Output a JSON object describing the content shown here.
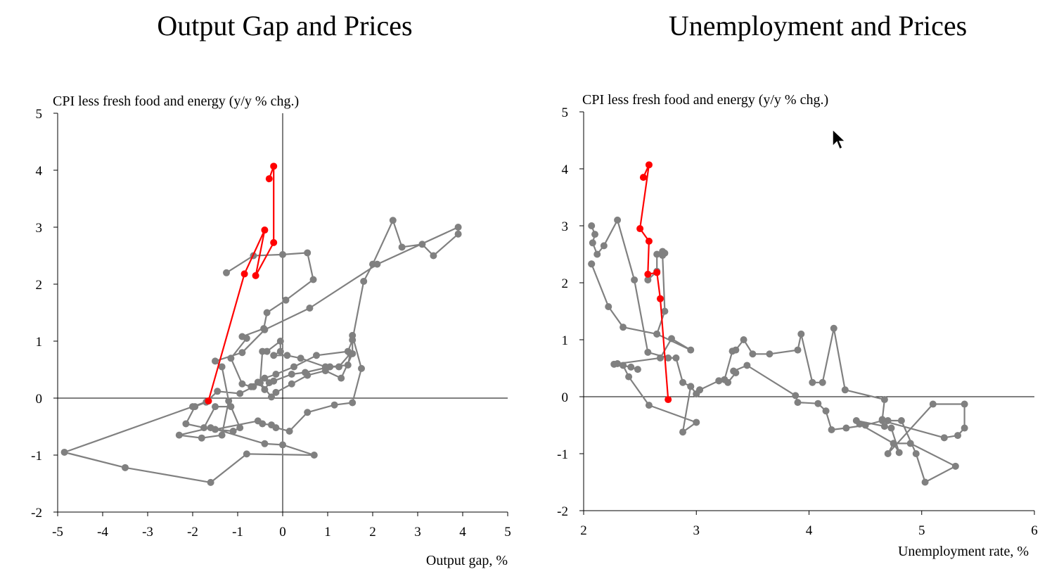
{
  "colors": {
    "background": "#ffffff",
    "history": "#808080",
    "recent": "#ff0000",
    "axis": "#000000"
  },
  "chart_data": [
    {
      "type": "scatter",
      "title": "Output Gap and Prices",
      "ylabel": "CPI less fresh food and energy (y/y % chg.)",
      "xlabel": "Output gap, %",
      "xlim": [
        -5,
        5
      ],
      "ylim": [
        -2,
        5
      ],
      "xticks": [
        -5,
        -4,
        -3,
        -2,
        -1,
        0,
        1,
        2,
        3,
        4,
        5
      ],
      "yticks": [
        -2,
        -1,
        0,
        1,
        2,
        3,
        4,
        5
      ],
      "xtick_labels": [
        "-5",
        "-4",
        "-3",
        "-2",
        "-1",
        "0",
        "1",
        "2",
        "3",
        "4",
        "5"
      ],
      "ytick_labels": [
        "-2",
        "-1",
        "0",
        "1",
        "2",
        "3",
        "4",
        "5"
      ],
      "series": [
        {
          "name": "history",
          "color": "#808080",
          "points": [
            [
              -1.25,
              2.2
            ],
            [
              -0.65,
              2.5
            ],
            [
              0.0,
              2.52
            ],
            [
              0.55,
              2.55
            ],
            [
              0.68,
              2.08
            ],
            [
              0.07,
              1.72
            ],
            [
              -0.35,
              1.5
            ],
            [
              -0.42,
              1.22
            ],
            [
              -0.9,
              1.08
            ],
            [
              -0.8,
              1.05
            ],
            [
              -1.15,
              0.7
            ],
            [
              -0.9,
              0.25
            ],
            [
              -0.7,
              0.2
            ],
            [
              -0.55,
              0.28
            ],
            [
              -0.4,
              0.15
            ],
            [
              -0.3,
              0.27
            ],
            [
              -0.2,
              0.3
            ],
            [
              0.2,
              0.42
            ],
            [
              0.5,
              0.45
            ],
            [
              1.05,
              0.55
            ],
            [
              1.45,
              0.58
            ],
            [
              1.5,
              0.78
            ],
            [
              1.25,
              0.55
            ],
            [
              0.95,
              0.55
            ],
            [
              0.4,
              0.7
            ],
            [
              0.1,
              0.75
            ],
            [
              -0.2,
              0.75
            ],
            [
              -0.05,
              0.82
            ],
            [
              -0.05,
              1.0
            ],
            [
              -0.35,
              0.82
            ],
            [
              -0.45,
              0.82
            ],
            [
              -0.5,
              0.27
            ],
            [
              -0.25,
              0.02
            ],
            [
              -0.15,
              0.1
            ],
            [
              0.2,
              0.25
            ],
            [
              0.55,
              0.4
            ],
            [
              0.95,
              0.48
            ],
            [
              1.3,
              0.35
            ],
            [
              1.55,
              0.78
            ],
            [
              1.55,
              1.1
            ],
            [
              1.75,
              0.52
            ],
            [
              1.55,
              -0.08
            ],
            [
              1.15,
              -0.12
            ],
            [
              0.55,
              -0.25
            ],
            [
              0.15,
              -0.58
            ],
            [
              -0.15,
              -0.52
            ],
            [
              -0.25,
              -0.47
            ],
            [
              -0.45,
              -0.45
            ],
            [
              -0.55,
              -0.4
            ],
            [
              -1.5,
              -0.55
            ],
            [
              -1.1,
              -0.58
            ],
            [
              -0.95,
              -0.52
            ],
            [
              -1.15,
              -0.15
            ],
            [
              -1.5,
              -0.15
            ],
            [
              -1.75,
              -0.52
            ],
            [
              -2.15,
              -0.45
            ],
            [
              -1.95,
              -0.15
            ],
            [
              -1.7,
              -0.07
            ],
            [
              -1.45,
              0.12
            ],
            [
              -0.95,
              0.08
            ],
            [
              -0.65,
              0.2
            ],
            [
              -0.4,
              0.35
            ],
            [
              -0.15,
              0.42
            ],
            [
              0.25,
              0.55
            ],
            [
              0.75,
              0.75
            ],
            [
              1.45,
              0.82
            ],
            [
              1.55,
              1.02
            ],
            [
              1.8,
              2.05
            ],
            [
              2.0,
              2.35
            ],
            [
              2.45,
              3.12
            ],
            [
              2.65,
              2.65
            ],
            [
              3.1,
              2.7
            ],
            [
              3.35,
              2.5
            ],
            [
              3.9,
              2.88
            ],
            [
              3.9,
              3.0
            ],
            [
              2.1,
              2.35
            ],
            [
              0.6,
              1.58
            ],
            [
              -0.4,
              1.2
            ],
            [
              -0.9,
              0.8
            ],
            [
              -1.5,
              0.65
            ],
            [
              -1.35,
              0.55
            ],
            [
              -1.2,
              -0.05
            ],
            [
              -1.35,
              -0.65
            ],
            [
              -1.8,
              -0.7
            ],
            [
              -2.3,
              -0.65
            ],
            [
              -1.6,
              -0.52
            ],
            [
              -0.4,
              -0.8
            ],
            [
              0.0,
              -0.82
            ],
            [
              0.7,
              -1.0
            ],
            [
              -0.8,
              -0.98
            ],
            [
              -1.6,
              -1.48
            ],
            [
              -3.5,
              -1.22
            ],
            [
              -4.85,
              -0.95
            ],
            [
              -2.0,
              -0.15
            ],
            [
              -1.65,
              -0.05
            ]
          ]
        },
        {
          "name": "recent",
          "color": "#ff0000",
          "points": [
            [
              -1.65,
              -0.05
            ],
            [
              -0.85,
              2.18
            ],
            [
              -0.4,
              2.95
            ],
            [
              -0.6,
              2.15
            ],
            [
              -0.2,
              2.73
            ],
            [
              -0.2,
              4.07
            ],
            [
              -0.3,
              3.85
            ]
          ]
        }
      ]
    },
    {
      "type": "scatter",
      "title": "Unemployment and Prices",
      "ylabel": "CPI less fresh food and energy (y/y % chg.)",
      "xlabel": "Unemployment rate, %",
      "xlim": [
        2,
        6
      ],
      "ylim": [
        -2,
        5
      ],
      "xticks": [
        2,
        3,
        4,
        5,
        6
      ],
      "yticks": [
        -2,
        -1,
        0,
        1,
        2,
        3,
        4,
        5
      ],
      "xtick_labels": [
        "2",
        "3",
        "4",
        "5",
        "6"
      ],
      "ytick_labels": [
        "-2",
        "-1",
        "0",
        "1",
        "2",
        "3",
        "4",
        "5"
      ],
      "series": [
        {
          "name": "history",
          "color": "#808080",
          "points": [
            [
              2.07,
              3.0
            ],
            [
              2.1,
              2.85
            ],
            [
              2.08,
              2.7
            ],
            [
              2.12,
              2.5
            ],
            [
              2.18,
              2.65
            ],
            [
              2.3,
              3.1
            ],
            [
              2.45,
              2.05
            ],
            [
              2.57,
              0.78
            ],
            [
              2.75,
              0.68
            ],
            [
              2.82,
              0.68
            ],
            [
              2.88,
              0.25
            ],
            [
              2.95,
              0.18
            ],
            [
              3.0,
              0.05
            ],
            [
              3.03,
              0.12
            ],
            [
              3.2,
              0.28
            ],
            [
              3.25,
              0.3
            ],
            [
              3.32,
              0.8
            ],
            [
              3.35,
              0.82
            ],
            [
              3.42,
              1.0
            ],
            [
              3.5,
              0.75
            ],
            [
              3.65,
              0.75
            ],
            [
              3.9,
              0.82
            ],
            [
              3.93,
              1.1
            ],
            [
              4.03,
              0.25
            ],
            [
              4.12,
              0.25
            ],
            [
              4.22,
              1.2
            ],
            [
              4.32,
              0.12
            ],
            [
              4.67,
              -0.05
            ],
            [
              4.65,
              -0.4
            ],
            [
              4.7,
              -0.42
            ],
            [
              4.82,
              -0.42
            ],
            [
              4.95,
              -1.0
            ],
            [
              5.03,
              -1.5
            ],
            [
              5.3,
              -1.22
            ],
            [
              4.9,
              -0.82
            ],
            [
              4.75,
              -0.82
            ],
            [
              4.45,
              -0.48
            ],
            [
              4.42,
              -0.42
            ],
            [
              4.67,
              -0.52
            ],
            [
              4.73,
              -0.55
            ],
            [
              4.8,
              -0.98
            ],
            [
              4.75,
              -0.82
            ],
            [
              4.7,
              -1.0
            ],
            [
              5.1,
              -0.13
            ],
            [
              5.38,
              -0.13
            ],
            [
              5.38,
              -0.55
            ],
            [
              5.32,
              -0.68
            ],
            [
              5.2,
              -0.72
            ],
            [
              4.65,
              -0.42
            ],
            [
              4.5,
              -0.5
            ],
            [
              4.33,
              -0.55
            ],
            [
              4.2,
              -0.58
            ],
            [
              4.15,
              -0.25
            ],
            [
              4.08,
              -0.12
            ],
            [
              3.9,
              -0.1
            ],
            [
              3.88,
              0.02
            ],
            [
              3.45,
              0.55
            ],
            [
              3.33,
              0.45
            ],
            [
              3.35,
              0.42
            ],
            [
              3.28,
              0.25
            ],
            [
              3.2,
              0.28
            ],
            [
              3.03,
              0.12
            ],
            [
              3.0,
              0.05
            ],
            [
              2.95,
              0.18
            ],
            [
              2.88,
              -0.62
            ],
            [
              3.0,
              -0.45
            ],
            [
              2.58,
              -0.15
            ],
            [
              2.4,
              0.35
            ],
            [
              2.35,
              0.55
            ],
            [
              2.42,
              0.52
            ],
            [
              2.48,
              0.48
            ],
            [
              2.3,
              0.58
            ],
            [
              2.27,
              0.57
            ],
            [
              2.68,
              0.68
            ],
            [
              2.78,
              1.02
            ],
            [
              2.95,
              0.82
            ],
            [
              2.65,
              1.1
            ],
            [
              2.35,
              1.22
            ],
            [
              2.22,
              1.58
            ],
            [
              2.07,
              2.33
            ],
            [
              2.07,
              2.33
            ]
          ]
        },
        {
          "name": "second-history",
          "color": "#808080",
          "points": [
            [
              2.57,
              2.05
            ],
            [
              2.65,
              2.2
            ],
            [
              2.65,
              2.5
            ],
            [
              2.7,
              2.55
            ],
            [
              2.72,
              2.52
            ],
            [
              2.7,
              2.48
            ],
            [
              2.72,
              1.5
            ],
            [
              2.65,
              1.1
            ]
          ]
        },
        {
          "name": "recent",
          "color": "#ff0000",
          "points": [
            [
              2.75,
              -0.05
            ],
            [
              2.68,
              1.72
            ],
            [
              2.65,
              2.18
            ],
            [
              2.57,
              2.15
            ],
            [
              2.58,
              2.73
            ],
            [
              2.5,
              2.95
            ],
            [
              2.58,
              4.07
            ],
            [
              2.53,
              3.85
            ]
          ]
        }
      ]
    }
  ]
}
